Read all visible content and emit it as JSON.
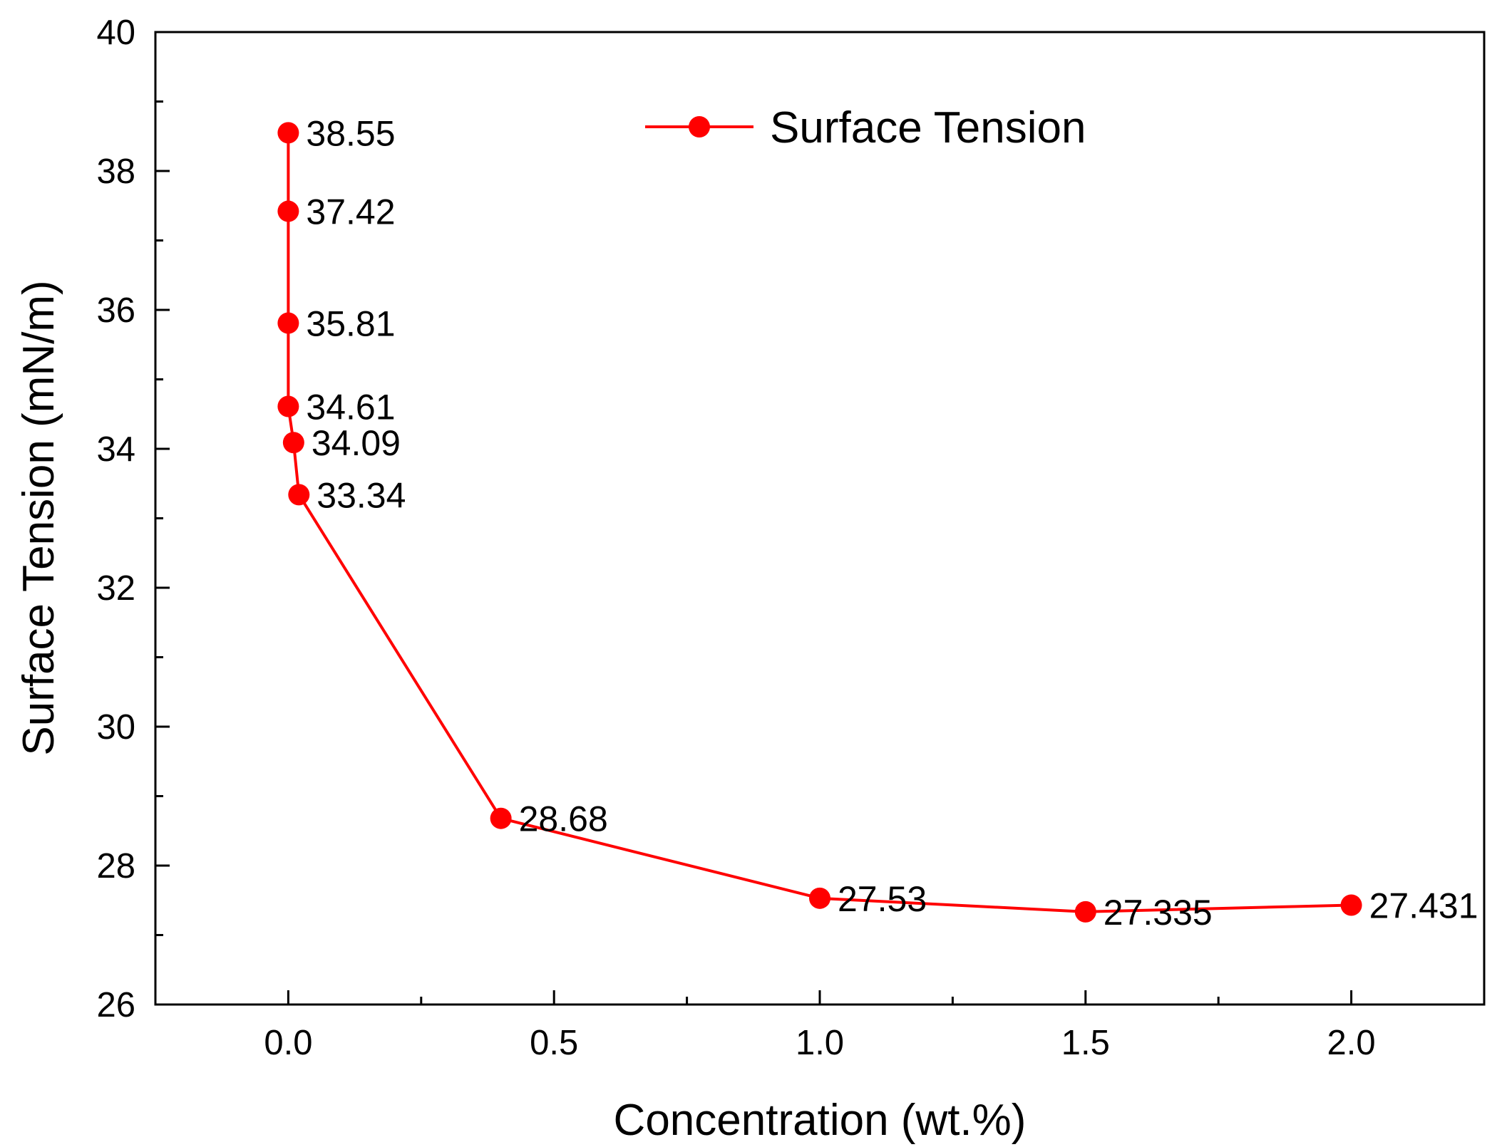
{
  "chart_data": {
    "type": "line",
    "title": "",
    "xlabel": "Concentration (wt.%)",
    "ylabel": "Surface Tension (mN/m)",
    "xlim": [
      -0.25,
      2.25
    ],
    "ylim": [
      26,
      40
    ],
    "x_ticks": [
      0.0,
      0.5,
      1.0,
      1.5,
      2.0
    ],
    "x_tick_labels": [
      "0.0",
      "0.5",
      "1.0",
      "1.5",
      "2.0"
    ],
    "x_minor_step": 0.25,
    "y_ticks": [
      26,
      28,
      30,
      32,
      34,
      36,
      38,
      40
    ],
    "y_tick_labels": [
      "26",
      "28",
      "30",
      "32",
      "34",
      "36",
      "38",
      "40"
    ],
    "y_minor_step": 1,
    "grid": false,
    "legend_position": "top-center",
    "color": "#ff0000",
    "series": [
      {
        "name": "Surface Tension",
        "x": [
          0.0,
          0.0,
          0.0,
          0.0,
          0.01,
          0.02,
          0.4,
          1.0,
          1.5,
          2.0
        ],
        "y": [
          38.55,
          37.42,
          35.81,
          34.61,
          34.09,
          33.34,
          28.68,
          27.53,
          27.335,
          27.431
        ],
        "labels": [
          "38.55",
          "37.42",
          "35.81",
          "34.61",
          "34.09",
          "33.34",
          "28.68",
          "27.53",
          "27.335",
          "27.431"
        ]
      }
    ]
  }
}
